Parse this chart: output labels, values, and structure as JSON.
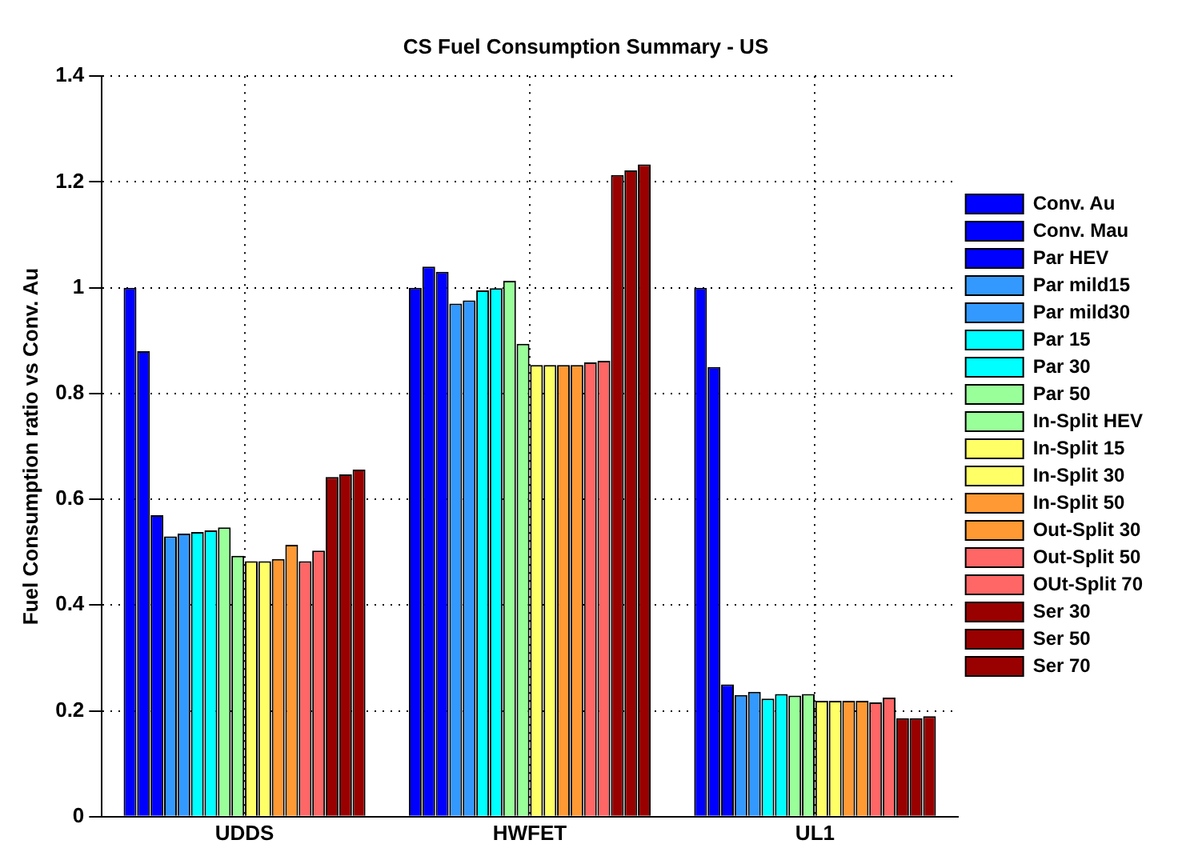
{
  "chart_data": {
    "type": "bar",
    "title": "CS Fuel Consumption Summary - US",
    "ylabel": "Fuel Consumption ratio vs Conv. Au",
    "categories": [
      "UDDS",
      "HWFET",
      "UL1"
    ],
    "ylim": [
      0,
      1.4
    ],
    "yticks": [
      0,
      0.2,
      0.4,
      0.6,
      0.8,
      1,
      1.2,
      1.4
    ],
    "grid": true,
    "legend": "right",
    "series": [
      {
        "name": "Conv. Au",
        "color": "#0000ff",
        "values": [
          1.0,
          1.0,
          1.0
        ]
      },
      {
        "name": "Conv. Mau",
        "color": "#0000ff",
        "values": [
          0.88,
          1.04,
          0.85
        ]
      },
      {
        "name": "Par HEV",
        "color": "#0000ff",
        "values": [
          0.57,
          1.03,
          0.25
        ]
      },
      {
        "name": "Par mild15",
        "color": "#3399ff",
        "values": [
          0.53,
          0.97,
          0.23
        ]
      },
      {
        "name": "Par mild30",
        "color": "#3399ff",
        "values": [
          0.535,
          0.976,
          0.236
        ]
      },
      {
        "name": "Par 15",
        "color": "#00ffff",
        "values": [
          0.538,
          0.995,
          0.223
        ]
      },
      {
        "name": "Par 30",
        "color": "#00ffff",
        "values": [
          0.541,
          0.999,
          0.232
        ]
      },
      {
        "name": "Par 50",
        "color": "#99ff99",
        "values": [
          0.547,
          1.013,
          0.229
        ]
      },
      {
        "name": "In-Split HEV",
        "color": "#99ff99",
        "values": [
          0.493,
          0.894,
          0.232
        ]
      },
      {
        "name": "In-Split 15",
        "color": "#ffff66",
        "values": [
          0.483,
          0.854,
          0.219
        ]
      },
      {
        "name": "In-Split 30",
        "color": "#ffff66",
        "values": [
          0.483,
          0.854,
          0.219
        ]
      },
      {
        "name": "In-Split 50",
        "color": "#ff9933",
        "values": [
          0.487,
          0.854,
          0.219
        ]
      },
      {
        "name": "Out-Split 30",
        "color": "#ff9933",
        "values": [
          0.514,
          0.854,
          0.219
        ]
      },
      {
        "name": "Out-Split 50",
        "color": "#ff6666",
        "values": [
          0.483,
          0.859,
          0.216
        ]
      },
      {
        "name": "OUt-Split 70",
        "color": "#ff6666",
        "values": [
          0.503,
          0.862,
          0.225
        ]
      },
      {
        "name": "Ser 30",
        "color": "#990000",
        "values": [
          0.642,
          1.213,
          0.186
        ]
      },
      {
        "name": "Ser 50",
        "color": "#990000",
        "values": [
          0.647,
          1.222,
          0.186
        ]
      },
      {
        "name": "Ser 70",
        "color": "#990000",
        "values": [
          0.656,
          1.233,
          0.19
        ]
      }
    ]
  }
}
